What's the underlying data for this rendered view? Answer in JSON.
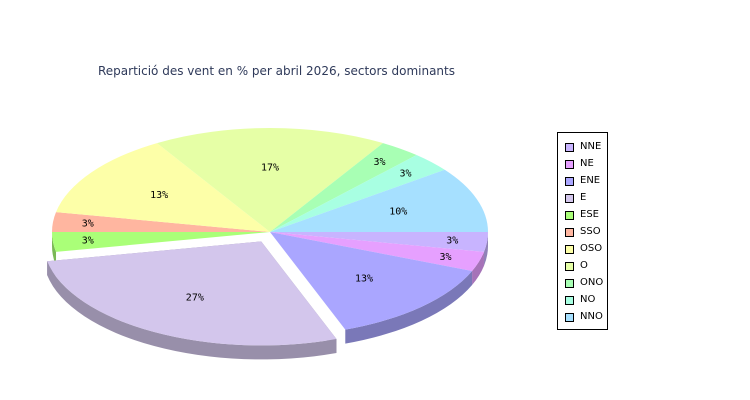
{
  "chart_data": {
    "type": "pie",
    "title": "Repartició des vent en % per abril 2026, sectors dominants",
    "slices": [
      {
        "name": "NNE",
        "value": 3,
        "label": "3%",
        "color": "#c8b4ff"
      },
      {
        "name": "NE",
        "value": 3,
        "label": "3%",
        "color": "#e6a0ff"
      },
      {
        "name": "ENE",
        "value": 13,
        "label": "13%",
        "color": "#aaa6ff"
      },
      {
        "name": "E",
        "value": 27,
        "label": "27%",
        "color": "#d3c6ec",
        "exploded": true
      },
      {
        "name": "ESE",
        "value": 3,
        "label": "3%",
        "color": "#aaff78"
      },
      {
        "name": "SSO",
        "value": 3,
        "label": "3%",
        "color": "#ffb6a0"
      },
      {
        "name": "OSO",
        "value": 13,
        "label": "13%",
        "color": "#fdffa8"
      },
      {
        "name": "O",
        "value": 17,
        "label": "17%",
        "color": "#e6ffa6"
      },
      {
        "name": "ONO",
        "value": 3,
        "label": "3%",
        "color": "#a8ffb4"
      },
      {
        "name": "NO",
        "value": 3,
        "label": "3%",
        "color": "#a8ffe2"
      },
      {
        "name": "NNO",
        "value": 10,
        "label": "10%",
        "color": "#a6e0ff"
      }
    ],
    "legend_position": "right"
  }
}
